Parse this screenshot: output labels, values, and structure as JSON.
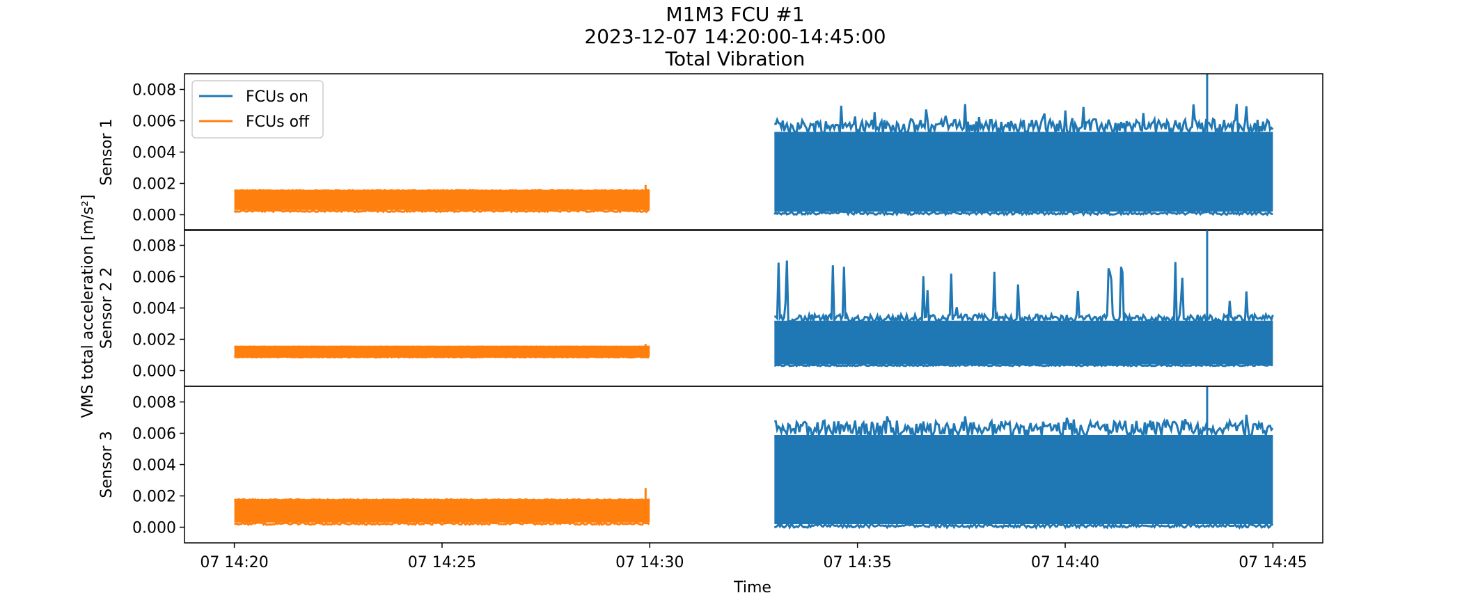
{
  "chart_data": {
    "type": "line",
    "title": [
      "M1M3 FCU #1",
      "2023-12-07 14:20:00-14:45:00",
      "Total Vibration"
    ],
    "xlabel": "Time",
    "ylabel": "VMS total acceleration [m/s²]",
    "x_ticks": [
      "07 14:20",
      "07 14:25",
      "07 14:30",
      "07 14:35",
      "07 14:40",
      "07 14:45"
    ],
    "x_range_minutes": [
      -1.2,
      26.2
    ],
    "y_ticks": [
      "0.000",
      "0.002",
      "0.004",
      "0.006",
      "0.008"
    ],
    "ylim": [
      -0.001,
      0.009
    ],
    "grid": false,
    "legend_position": "upper left",
    "series": [
      {
        "name": "FCUs on",
        "color": "#1f77b4"
      },
      {
        "name": "FCUs off",
        "color": "#ff7f0e"
      }
    ],
    "panels": [
      {
        "ylabel": "Sensor 1",
        "fcus_off": {
          "start": "14:20",
          "end": "14:30",
          "low": 0.0003,
          "high": 0.0015,
          "peak": 0.0019
        },
        "fcus_on": {
          "start": "14:33",
          "end": "14:45",
          "low": 0.0002,
          "high": 0.0052,
          "peak": 0.009,
          "peak_time": "14:43:25"
        }
      },
      {
        "ylabel": "Sensor 2 2",
        "fcus_off": {
          "start": "14:20",
          "end": "14:30",
          "low": 0.0009,
          "high": 0.0015,
          "peak": 0.0017
        },
        "fcus_on": {
          "start": "14:33",
          "end": "14:45",
          "low": 0.0004,
          "high": 0.0031,
          "peak": 0.009,
          "peak_time": "14:43:25"
        }
      },
      {
        "ylabel": "Sensor 3",
        "fcus_off": {
          "start": "14:20",
          "end": "14:30",
          "low": 0.0003,
          "high": 0.0017,
          "peak": 0.0025
        },
        "fcus_on": {
          "start": "14:33",
          "end": "14:45",
          "low": 0.0002,
          "high": 0.0058,
          "peak": 0.009,
          "peak_time": "14:43:25"
        }
      }
    ]
  }
}
